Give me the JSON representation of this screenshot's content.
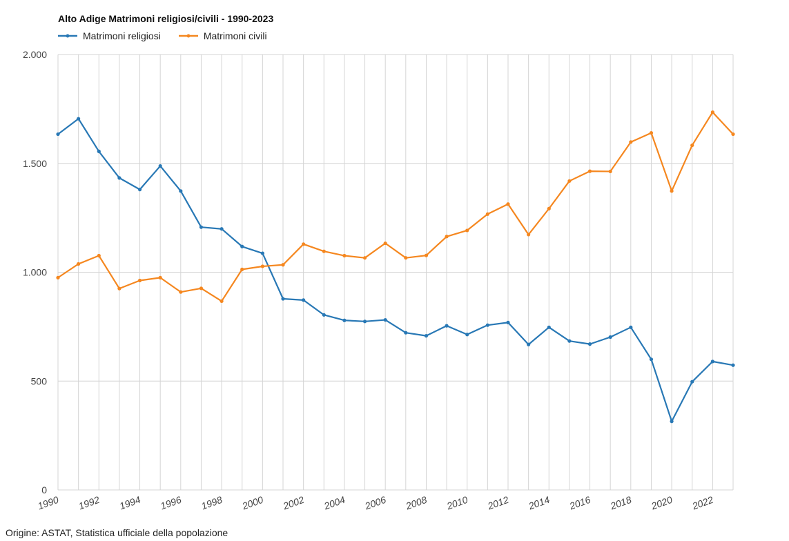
{
  "chart_data": {
    "type": "line",
    "title": "Alto Adige Matrimoni religiosi/civili - 1990-2023",
    "xlabel": "",
    "ylabel": "",
    "source": "Origine: ASTAT, Statistica ufficiale della popolazione",
    "x": [
      1990,
      1991,
      1992,
      1993,
      1994,
      1995,
      1996,
      1997,
      1998,
      1999,
      2000,
      2001,
      2002,
      2003,
      2004,
      2005,
      2006,
      2007,
      2008,
      2009,
      2010,
      2011,
      2012,
      2013,
      2014,
      2015,
      2016,
      2017,
      2018,
      2019,
      2020,
      2021,
      2022,
      2023
    ],
    "x_tick_labels": [
      "1990",
      "1992",
      "1994",
      "1996",
      "1998",
      "2000",
      "2002",
      "2004",
      "2006",
      "2008",
      "2010",
      "2012",
      "2014",
      "2016",
      "2018",
      "2020",
      "2022"
    ],
    "y_ticks": [
      0,
      500,
      1000,
      1500,
      2000
    ],
    "y_tick_labels": [
      "0",
      "500",
      "1.000",
      "1.500",
      "2.000"
    ],
    "ylim": [
      0,
      2000
    ],
    "grid": true,
    "legend_position": "top-left",
    "series": [
      {
        "name": "Matrimoni religiosi",
        "color": "#2878b5",
        "values": [
          1634,
          1705,
          1555,
          1433,
          1380,
          1488,
          1373,
          1207,
          1199,
          1118,
          1087,
          878,
          872,
          804,
          779,
          774,
          781,
          722,
          708,
          754,
          714,
          757,
          769,
          668,
          747,
          684,
          670,
          702,
          747,
          600,
          315,
          497,
          590,
          573
        ]
      },
      {
        "name": "Matrimoni civili",
        "color": "#f5871f",
        "values": [
          975,
          1038,
          1076,
          925,
          962,
          975,
          909,
          926,
          867,
          1013,
          1027,
          1034,
          1129,
          1096,
          1076,
          1066,
          1133,
          1066,
          1077,
          1164,
          1192,
          1267,
          1313,
          1173,
          1292,
          1419,
          1464,
          1463,
          1598,
          1640,
          1373,
          1583,
          1735,
          1634
        ]
      }
    ]
  }
}
